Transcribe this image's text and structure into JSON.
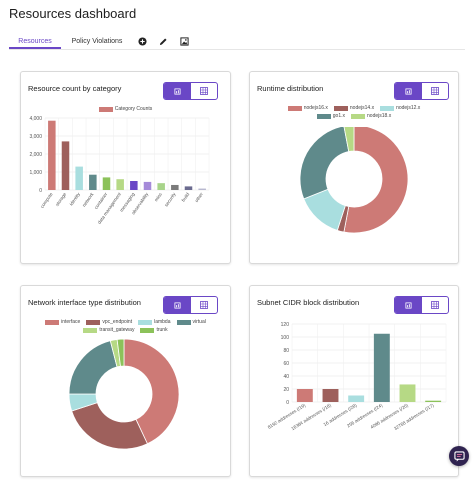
{
  "page": {
    "title": "Resources dashboard"
  },
  "tabs": [
    {
      "label": "Resources",
      "active": true
    },
    {
      "label": "Policy Violations",
      "active": false
    }
  ],
  "toolbar_icons": [
    "add-circle-icon",
    "edit-pencil-icon",
    "image-icon"
  ],
  "accent_color": "#6a47c6",
  "cards": {
    "resource_count": {
      "title": "Resource count by category",
      "view_toggle": [
        "chart-view-icon",
        "table-view-icon"
      ]
    },
    "runtime": {
      "title": "Runtime distribution",
      "view_toggle": [
        "chart-view-icon",
        "table-view-icon"
      ]
    },
    "network_interface": {
      "title": "Network interface type distribution",
      "view_toggle": [
        "chart-view-icon",
        "table-view-icon"
      ]
    },
    "subnet_cidr": {
      "title": "Subnet CIDR block distribution",
      "view_toggle": [
        "chart-view-icon",
        "table-view-icon"
      ]
    }
  },
  "chart_data": [
    {
      "id": "resource_count",
      "type": "bar",
      "title": "Resource count by category",
      "categories": [
        "compute",
        "storage",
        "identity",
        "network",
        "container",
        "data management",
        "messaging",
        "observability",
        "misc",
        "security",
        "build",
        "other"
      ],
      "series": [
        {
          "name": "Category Counts",
          "values": [
            3850,
            2700,
            1300,
            850,
            700,
            600,
            500,
            450,
            380,
            280,
            200,
            80
          ]
        }
      ],
      "bar_colors": [
        "#cd7a76",
        "#9e605c",
        "#a9dedf",
        "#5f8a8b",
        "#8cc25a",
        "#b6d985",
        "#6a47c6",
        "#a58ad9",
        "#a8d48a",
        "#7b7b7b",
        "#6b6b8f",
        "#b8b8cf"
      ],
      "yticks": [
        "0",
        "1,000",
        "2,000",
        "3,000",
        "4,000"
      ],
      "ylim": [
        0,
        4000
      ],
      "legend": "top",
      "grid": true
    },
    {
      "id": "runtime",
      "type": "pie",
      "title": "Runtime distribution",
      "donut": true,
      "labels": [
        "nodejs16.x",
        "nodejs14.x",
        "nodejs12.x",
        "go1.x",
        "nodejs18.x"
      ],
      "values": [
        53,
        2,
        14,
        28,
        3
      ],
      "colors": [
        "#cd7a76",
        "#9e605c",
        "#a9dedf",
        "#5f8a8b",
        "#b6d985"
      ],
      "legend": "top"
    },
    {
      "id": "network_interface",
      "type": "pie",
      "title": "Network interface type distribution",
      "donut": true,
      "labels": [
        "interface",
        "vpc_endpoint",
        "lambda",
        "virtual",
        "transit_gateway",
        "trunk"
      ],
      "values": [
        43,
        27,
        5,
        21,
        2,
        2
      ],
      "colors": [
        "#cd7a76",
        "#9e605c",
        "#a9dedf",
        "#5f8a8b",
        "#b6d985",
        "#8cc25a"
      ],
      "legend": "top"
    },
    {
      "id": "subnet_cidr",
      "type": "bar",
      "title": "Subnet CIDR block distribution",
      "categories": [
        "8192 addresses (/19)",
        "16384 addresses (/18)",
        "16 addresses (/28)",
        "256 addresses (/24)",
        "4096 addresses (/20)",
        "32768 addresses (/17)"
      ],
      "values": [
        20,
        20,
        10,
        105,
        27,
        2
      ],
      "bar_colors": [
        "#cd7a76",
        "#9e605c",
        "#a9dedf",
        "#5f8a8b",
        "#b6d985",
        "#8cc25a"
      ],
      "yticks": [
        "0",
        "20",
        "40",
        "60",
        "80",
        "100",
        "120"
      ],
      "ylim": [
        0,
        120
      ],
      "grid": true
    }
  ]
}
